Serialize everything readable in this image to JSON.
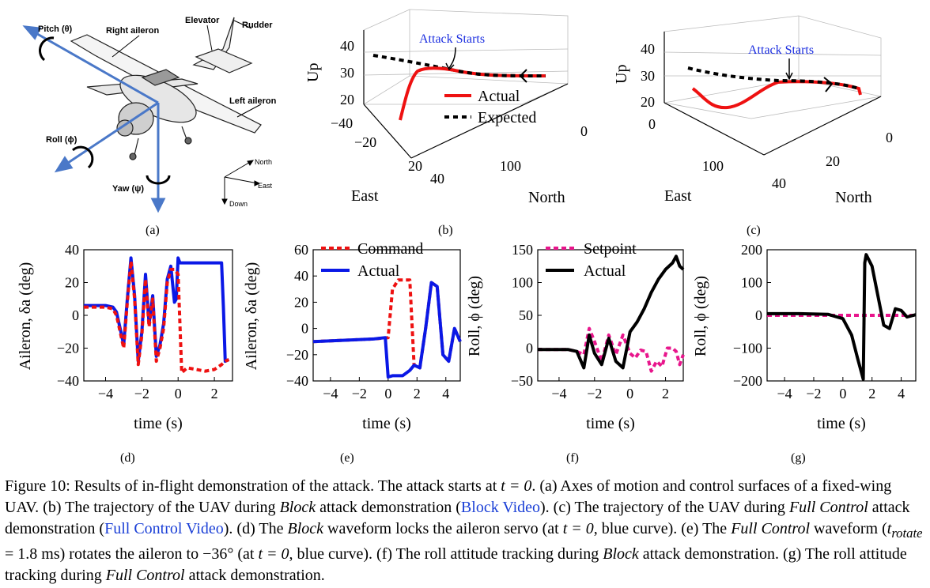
{
  "figure": {
    "panels": {
      "a": {
        "label": "(a)",
        "callouts": {
          "pitch": "Pitch (θ)",
          "right_aileron": "Right aileron",
          "elevator": "Elevator",
          "rudder": "Rudder",
          "left_aileron": "Left aileron",
          "roll": "Roll (ϕ)",
          "yaw": "Yaw (ψ)",
          "north": "North",
          "east": "East",
          "down": "Down"
        }
      },
      "b": {
        "label": "(b)",
        "annotation": "Attack Starts",
        "zlabel": "Up",
        "xlabel": "East",
        "ylabel": "North",
        "ztick_labels": [
          "40",
          "30",
          "20"
        ],
        "east_tick_labels": [
          "−40",
          "−20",
          "20",
          "40"
        ],
        "north_tick_labels": [
          "100",
          "0"
        ],
        "legend": [
          "Actual",
          "Expected"
        ]
      },
      "c": {
        "label": "(c)",
        "annotation": "Attack Starts",
        "zlabel": "Up",
        "xlabel": "East",
        "ylabel": "North",
        "ztick_labels": [
          "40",
          "30",
          "20",
          "0"
        ],
        "east_tick_labels": [
          "100",
          "40"
        ],
        "north_tick_labels": [
          "20",
          "0"
        ]
      },
      "d": {
        "label": "(d)",
        "xlabel": "time (s)",
        "ylabel": "Aileron, δa (deg)",
        "ytick_labels": [
          "40",
          "20",
          "0",
          "−20",
          "−40"
        ],
        "xtick_labels": [
          "−4",
          "−2",
          "0",
          "2"
        ]
      },
      "e": {
        "label": "(e)",
        "xlabel": "time (s)",
        "ylabel": "Aileron, δa (deg)",
        "ytick_labels": [
          "60",
          "40",
          "20",
          "0",
          "−20",
          "−40"
        ],
        "xtick_labels": [
          "−4",
          "−2",
          "0",
          "2",
          "4"
        ],
        "legend": [
          "Command",
          "Actual"
        ]
      },
      "f": {
        "label": "(f)",
        "xlabel": "time (s)",
        "ylabel": "Roll, ϕ (deg)",
        "ytick_labels": [
          "150",
          "100",
          "50",
          "0",
          "−50"
        ],
        "xtick_labels": [
          "−4",
          "−2",
          "0",
          "2"
        ],
        "legend": [
          "Setpoint",
          "Actual"
        ]
      },
      "g": {
        "label": "(g)",
        "xlabel": "time (s)",
        "ylabel": "Roll, ϕ (deg)",
        "ytick_labels": [
          "200",
          "100",
          "0",
          "−100",
          "−200"
        ],
        "xtick_labels": [
          "−4",
          "−2",
          "0",
          "2",
          "4"
        ]
      }
    },
    "colors": {
      "actual_blue": "#0a18e6",
      "command_red": "#ee1111",
      "setpoint_magenta": "#e8168c",
      "black": "#000000",
      "link_blue": "#1a3fd6",
      "model_blue": "#4a78c8"
    }
  },
  "chart_data": [
    {
      "panel": "d",
      "type": "line",
      "xlabel": "time (s)",
      "ylabel": "Aileron, δa (deg)",
      "xlim": [
        -5.2,
        3.0
      ],
      "ylim": [
        -40,
        40
      ],
      "series": [
        {
          "style": "solid-blue",
          "x": [
            -5.2,
            -4.0,
            -3.6,
            -3.4,
            -3.2,
            -3.0,
            -2.8,
            -2.6,
            -2.4,
            -2.2,
            -2.0,
            -1.8,
            -1.6,
            -1.4,
            -1.2,
            -1.0,
            -0.8,
            -0.6,
            -0.4,
            -0.2,
            -0.1,
            0.0,
            0.1,
            0.2,
            0.5,
            1.0,
            1.5,
            2.0,
            2.4,
            2.5,
            2.6,
            2.8
          ],
          "y": [
            6,
            6,
            5,
            2,
            -8,
            -18,
            10,
            35,
            12,
            -28,
            -10,
            25,
            -5,
            12,
            -25,
            -18,
            -5,
            22,
            30,
            8,
            10,
            35,
            32,
            32,
            32,
            32,
            32,
            32,
            32,
            5,
            -28,
            -27
          ]
        },
        {
          "style": "dashed-red",
          "x": [
            -5.2,
            -4.0,
            -3.6,
            -3.4,
            -3.2,
            -3.0,
            -2.8,
            -2.6,
            -2.4,
            -2.2,
            -2.0,
            -1.8,
            -1.6,
            -1.4,
            -1.2,
            -1.0,
            -0.8,
            -0.6,
            -0.4,
            -0.2,
            0.0,
            0.2,
            0.5,
            1.0,
            1.5,
            2.0,
            2.4,
            2.6,
            2.8
          ],
          "y": [
            5,
            5,
            4,
            0,
            -10,
            -20,
            8,
            33,
            10,
            -30,
            -12,
            22,
            -7,
            10,
            -28,
            -20,
            -8,
            20,
            28,
            28,
            25,
            -35,
            -32,
            -33,
            -34,
            -33,
            -30,
            -28,
            -27
          ]
        }
      ]
    },
    {
      "panel": "e",
      "type": "line",
      "xlabel": "time (s)",
      "ylabel": "Aileron, δa (deg)",
      "xlim": [
        -5.2,
        5.0
      ],
      "ylim": [
        -40,
        60
      ],
      "series": [
        {
          "name": "Command",
          "style": "dashed-red",
          "x": [
            -5.2,
            -3.0,
            -1.0,
            0.0,
            0.3,
            0.7,
            1.5,
            1.8,
            2.2,
            2.6,
            3.0,
            3.4,
            3.8,
            4.2,
            4.6,
            5.0
          ],
          "y": [
            -10,
            -9,
            -8,
            -7,
            30,
            37,
            37,
            -28,
            -30,
            0,
            35,
            32,
            -20,
            -25,
            0,
            -10
          ]
        },
        {
          "name": "Actual",
          "style": "solid-blue",
          "x": [
            -5.2,
            -3.0,
            -1.0,
            -0.2,
            0.0,
            0.3,
            1.0,
            1.5,
            1.8,
            2.2,
            2.6,
            3.0,
            3.4,
            3.8,
            4.2,
            4.6,
            5.0
          ],
          "y": [
            -10,
            -9,
            -8,
            -7,
            -37,
            -36,
            -36,
            -32,
            -28,
            -30,
            0,
            35,
            32,
            -20,
            -25,
            0,
            -10
          ]
        }
      ]
    },
    {
      "panel": "f",
      "type": "line",
      "xlabel": "time (s)",
      "ylabel": "Roll, ϕ (deg)",
      "xlim": [
        -5.2,
        3.0
      ],
      "ylim": [
        -50,
        150
      ],
      "series": [
        {
          "name": "Setpoint",
          "style": "dashed-magenta",
          "x": [
            -5.2,
            -3.5,
            -3.0,
            -2.6,
            -2.3,
            -2.0,
            -1.6,
            -1.2,
            -0.8,
            -0.4,
            0.0,
            0.3,
            0.6,
            0.9,
            1.2,
            1.5,
            1.8,
            2.1,
            2.4,
            2.6,
            2.8,
            3.0
          ],
          "y": [
            -2,
            -2,
            -5,
            -10,
            30,
            10,
            -20,
            20,
            -10,
            20,
            -8,
            -15,
            -3,
            -5,
            -35,
            -20,
            -28,
            0,
            0,
            -5,
            -25,
            -10
          ]
        },
        {
          "name": "Actual",
          "style": "solid-black",
          "x": [
            -5.2,
            -3.5,
            -3.0,
            -2.6,
            -2.3,
            -2.0,
            -1.6,
            -1.2,
            -0.8,
            -0.4,
            0.0,
            0.4,
            0.8,
            1.2,
            1.6,
            2.0,
            2.4,
            2.6,
            2.8,
            3.0
          ],
          "y": [
            -2,
            -2,
            -5,
            -30,
            20,
            -8,
            -25,
            15,
            -20,
            -30,
            25,
            40,
            60,
            85,
            105,
            120,
            130,
            140,
            125,
            120
          ]
        }
      ]
    },
    {
      "panel": "g",
      "type": "line",
      "xlabel": "time (s)",
      "ylabel": "Roll, ϕ (deg)",
      "xlim": [
        -5.2,
        5.0
      ],
      "ylim": [
        -200,
        200
      ],
      "series": [
        {
          "style": "dashed-magenta",
          "x": [
            -5.2,
            5.0
          ],
          "y": [
            0,
            0
          ]
        },
        {
          "style": "solid-black",
          "x": [
            -5.2,
            -3.0,
            -1.0,
            0.0,
            0.6,
            1.0,
            1.4,
            1.5,
            1.6,
            2.0,
            2.4,
            2.8,
            3.2,
            3.6,
            4.0,
            4.4,
            5.0
          ],
          "y": [
            5,
            5,
            3,
            -10,
            -60,
            -130,
            -195,
            160,
            185,
            150,
            60,
            -30,
            -40,
            20,
            15,
            -5,
            2
          ]
        }
      ]
    }
  ],
  "caption": {
    "prefix": "Figure 10: Results of in-flight demonstration of the attack. The attack starts at ",
    "t0": "t = 0",
    "part1": ". (a) Axes of motion and control surfaces of a fixed-wing UAV. (b) The trajectory of the UAV during ",
    "block": "Block",
    "part2": " attack demonstration (",
    "link1": "Block Video",
    "part3": "). (c) The trajectory of the UAV during ",
    "full": "Full Control",
    "part4": " attack demonstration (",
    "link2": "Full Control Video",
    "part5": "). (d) The ",
    "block2": "Block",
    "part6": " waveform locks the aileron servo (at ",
    "t0b": "t = 0",
    "part7": ", blue curve). (e) The ",
    "full2": "Full Control",
    "part8": " waveform (",
    "trotate": "t",
    "trotate_sub": "rotate",
    "part9": " = 1.8 ms) rotates the aileron to −36° (at ",
    "t0c": "t = 0",
    "part10": ", blue curve). (f) The roll attitude tracking during ",
    "block3": "Block",
    "part11": " attack demonstration. (g) The roll attitude tracking during ",
    "full3": "Full Control",
    "part12": " attack demonstration."
  }
}
